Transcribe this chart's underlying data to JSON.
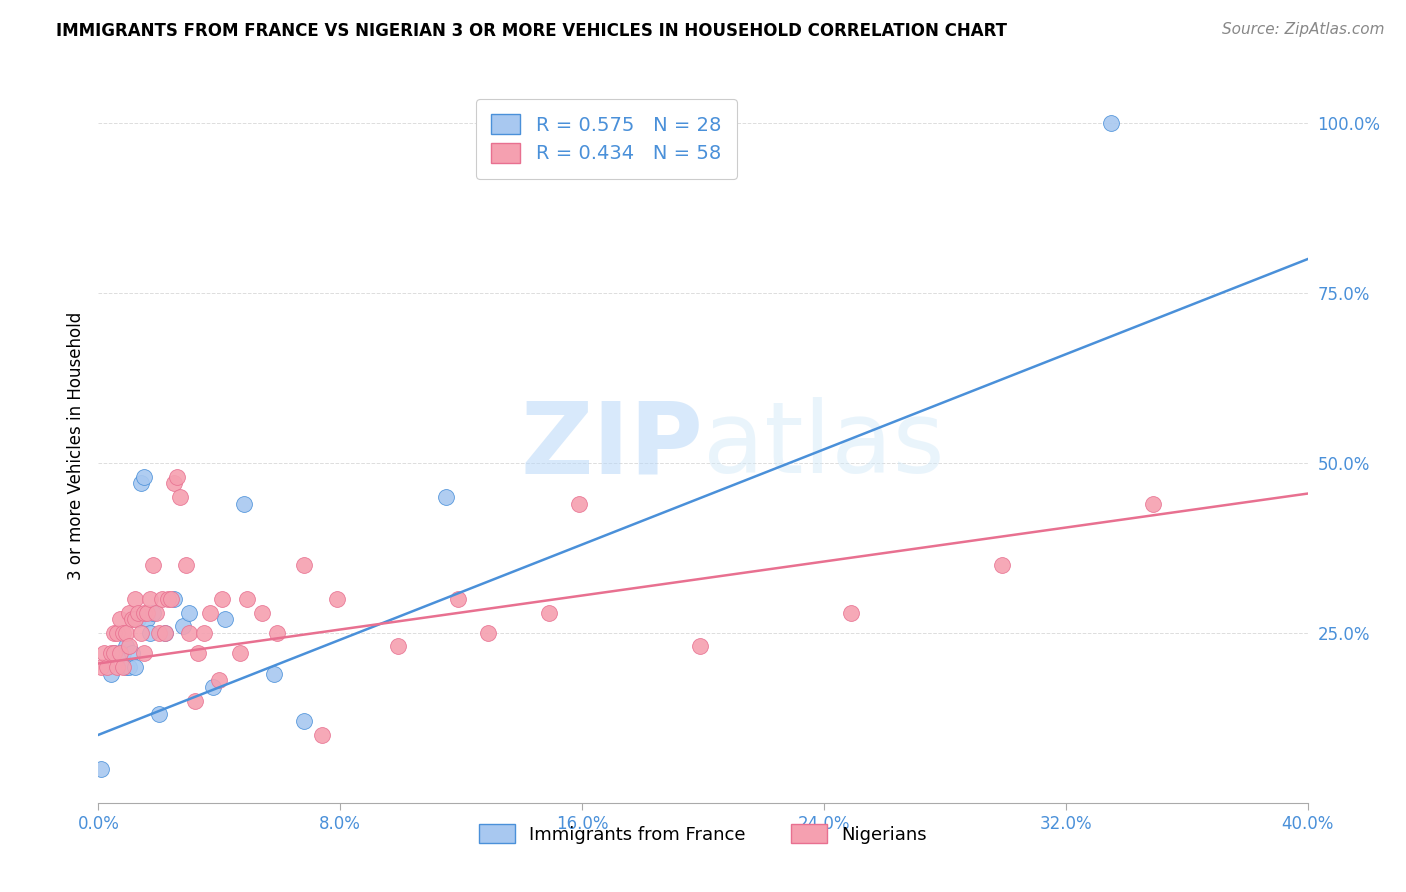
{
  "title": "IMMIGRANTS FROM FRANCE VS NIGERIAN 3 OR MORE VEHICLES IN HOUSEHOLD CORRELATION CHART",
  "source": "Source: ZipAtlas.com",
  "ylabel": "3 or more Vehicles in Household",
  "xlim": [
    0.0,
    0.4
  ],
  "ylim": [
    0.0,
    1.05
  ],
  "yticks": [
    0.25,
    0.5,
    0.75,
    1.0
  ],
  "ytick_labels": [
    "25.0%",
    "50.0%",
    "75.0%",
    "100.0%"
  ],
  "xticks": [
    0.0,
    0.08,
    0.16,
    0.24,
    0.32,
    0.4
  ],
  "xtick_labels": [
    "0.0%",
    "8.0%",
    "16.0%",
    "24.0%",
    "32.0%",
    "40.0%"
  ],
  "blue_R": "R = 0.575",
  "blue_N": "N = 28",
  "pink_R": "R = 0.434",
  "pink_N": "N = 58",
  "blue_color": "#a8c8f0",
  "pink_color": "#f5a0b0",
  "blue_line_color": "#4a90d9",
  "pink_line_color": "#e87090",
  "watermark_zip": "ZIP",
  "watermark_atlas": "atlas",
  "legend_label_blue": "Immigrants from France",
  "legend_label_pink": "Nigerians",
  "blue_scatter_x": [
    0.001,
    0.004,
    0.005,
    0.007,
    0.008,
    0.009,
    0.009,
    0.01,
    0.011,
    0.012,
    0.013,
    0.014,
    0.015,
    0.016,
    0.017,
    0.018,
    0.02,
    0.022,
    0.025,
    0.028,
    0.03,
    0.038,
    0.042,
    0.048,
    0.058,
    0.068,
    0.115,
    0.335
  ],
  "blue_scatter_y": [
    0.05,
    0.19,
    0.22,
    0.22,
    0.22,
    0.2,
    0.23,
    0.2,
    0.22,
    0.2,
    0.27,
    0.47,
    0.48,
    0.27,
    0.25,
    0.28,
    0.13,
    0.25,
    0.3,
    0.26,
    0.28,
    0.17,
    0.27,
    0.44,
    0.19,
    0.12,
    0.45,
    1.0
  ],
  "pink_scatter_x": [
    0.001,
    0.002,
    0.003,
    0.004,
    0.005,
    0.005,
    0.006,
    0.006,
    0.007,
    0.007,
    0.008,
    0.008,
    0.009,
    0.01,
    0.01,
    0.011,
    0.012,
    0.012,
    0.013,
    0.014,
    0.015,
    0.015,
    0.016,
    0.017,
    0.018,
    0.019,
    0.02,
    0.021,
    0.022,
    0.023,
    0.024,
    0.025,
    0.026,
    0.027,
    0.029,
    0.03,
    0.032,
    0.033,
    0.035,
    0.037,
    0.04,
    0.041,
    0.047,
    0.049,
    0.054,
    0.059,
    0.068,
    0.074,
    0.079,
    0.099,
    0.119,
    0.129,
    0.149,
    0.159,
    0.199,
    0.249,
    0.299,
    0.349
  ],
  "pink_scatter_y": [
    0.2,
    0.22,
    0.2,
    0.22,
    0.22,
    0.25,
    0.2,
    0.25,
    0.22,
    0.27,
    0.2,
    0.25,
    0.25,
    0.23,
    0.28,
    0.27,
    0.27,
    0.3,
    0.28,
    0.25,
    0.22,
    0.28,
    0.28,
    0.3,
    0.35,
    0.28,
    0.25,
    0.3,
    0.25,
    0.3,
    0.3,
    0.47,
    0.48,
    0.45,
    0.35,
    0.25,
    0.15,
    0.22,
    0.25,
    0.28,
    0.18,
    0.3,
    0.22,
    0.3,
    0.28,
    0.25,
    0.35,
    0.1,
    0.3,
    0.23,
    0.3,
    0.25,
    0.28,
    0.44,
    0.23,
    0.28,
    0.35,
    0.44
  ],
  "blue_line_x0": 0.0,
  "blue_line_x1": 0.4,
  "blue_line_y0": 0.1,
  "blue_line_y1": 0.8,
  "pink_line_x0": 0.0,
  "pink_line_x1": 0.4,
  "pink_line_y0": 0.205,
  "pink_line_y1": 0.455,
  "tick_color": "#4a90d9",
  "grid_color": "#dddddd",
  "title_fontsize": 12,
  "source_fontsize": 11,
  "tick_fontsize": 12,
  "ylabel_fontsize": 12
}
